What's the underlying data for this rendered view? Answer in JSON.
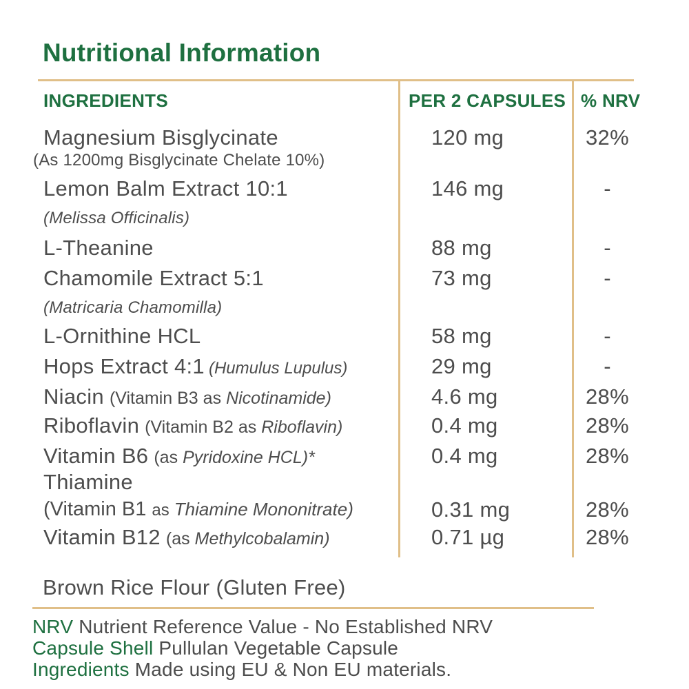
{
  "page_title": "Nutritional Information",
  "colors": {
    "green": "#1e7040",
    "text_gray": "#4d4d4d",
    "rule_tan": "#e0bf88"
  },
  "table": {
    "headers": {
      "ingredients": "INGREDIENTS",
      "per_serving": "PER 2 CAPSULES",
      "nrv": "% NRV"
    },
    "rows": [
      {
        "name": "Magnesium Bisglycinate",
        "sub": "(As 1200mg Bisglycinate Chelate 10%)",
        "value": "120 mg",
        "nrv": "32%"
      },
      {
        "name": "Lemon Balm Extract 10:1",
        "sub": "(Melissa Officinalis)",
        "value": "146 mg",
        "nrv": "-"
      },
      {
        "name": "L-Theanine",
        "value": "88 mg",
        "nrv": "-"
      },
      {
        "name": "Chamomile Extract 5:1",
        "sub": "(Matricaria Chamomilla)",
        "value": "73 mg",
        "nrv": "-"
      },
      {
        "name": "L-Ornithine HCL",
        "value": "58 mg",
        "nrv": "-"
      },
      {
        "name": "Hops Extract 4:1",
        "name_italic": "(Humulus Lupulus)",
        "value": "29 mg",
        "nrv": "-"
      },
      {
        "name": "Niacin",
        "paren": "(Vitamin B3 as",
        "paren_italic": "Nicotinamide)",
        "value": "4.6 mg",
        "nrv": "28%"
      },
      {
        "name": "Riboflavin",
        "paren": "(Vitamin B2 as",
        "paren_italic": "Riboflavin)",
        "value": "0.4 mg",
        "nrv": "28%"
      },
      {
        "name": "Vitamin B6",
        "paren": "(as",
        "paren_italic": "Pyridoxine HCL)",
        "tail": "*",
        "value": "0.4 mg",
        "nrv": "28%"
      },
      {
        "name": "Thiamine",
        "line2_paren": "(Vitamin B1",
        "line2_as": "as",
        "line2_italic": "Thiamine Mononitrate)",
        "value": "0.31 mg",
        "nrv": "28%"
      },
      {
        "name": "Vitamin B12",
        "paren": "(as",
        "paren_italic": "Methylcobalamin)",
        "value": "0.71 µg",
        "nrv": "28%"
      }
    ]
  },
  "other_ingredient": "Brown Rice Flour (Gluten Free)",
  "footnotes": [
    {
      "label": "NRV",
      "text": "Nutrient Reference Value - No Established NRV"
    },
    {
      "label": "Capsule Shell",
      "text": "Pullulan Vegetable Capsule"
    },
    {
      "label": "Ingredients",
      "text": "Made using EU & Non EU materials."
    }
  ]
}
